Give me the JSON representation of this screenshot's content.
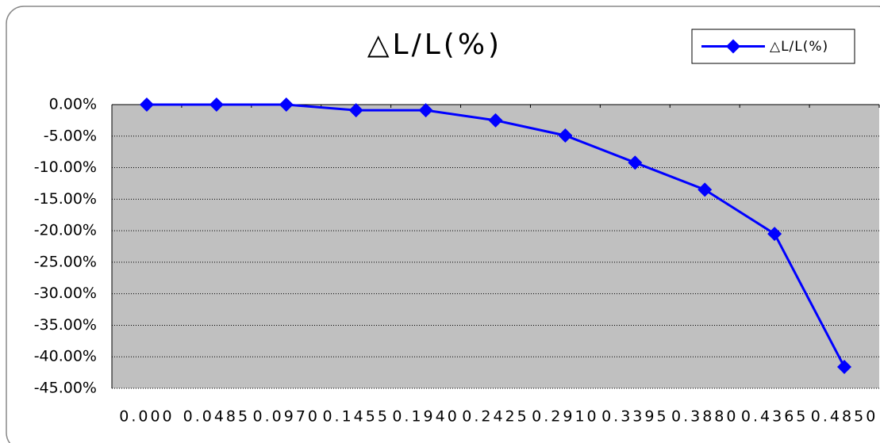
{
  "chart_data": {
    "type": "line",
    "title": "△L/L(%)",
    "categories": [
      "0.000",
      "0.0485",
      "0.0970",
      "0.1455",
      "0.1940",
      "0.2425",
      "0.2910",
      "0.3395",
      "0.3880",
      "0.4365",
      "0.4850"
    ],
    "series": [
      {
        "name": "△L/L(%)",
        "color": "#0000ff",
        "values": [
          0,
          0,
          0,
          -0.9,
          -0.9,
          -2.5,
          -4.9,
          -9.2,
          -13.5,
          -20.5,
          -41.6
        ]
      }
    ],
    "ylim": [
      -45,
      0
    ],
    "yticks": [
      {
        "value": 0,
        "label": "0.00%"
      },
      {
        "value": -5,
        "label": "-5.00%"
      },
      {
        "value": -10,
        "label": "-10.00%"
      },
      {
        "value": -15,
        "label": "-15.00%"
      },
      {
        "value": -20,
        "label": "-20.00%"
      },
      {
        "value": -25,
        "label": "-25.00%"
      },
      {
        "value": -30,
        "label": "-30.00%"
      },
      {
        "value": -35,
        "label": "-35.00%"
      },
      {
        "value": -40,
        "label": "-40.00%"
      },
      {
        "value": -45,
        "label": "-45.00%"
      }
    ],
    "grid": true,
    "plot_background": "#c0c0c0",
    "legend": "top-right"
  }
}
